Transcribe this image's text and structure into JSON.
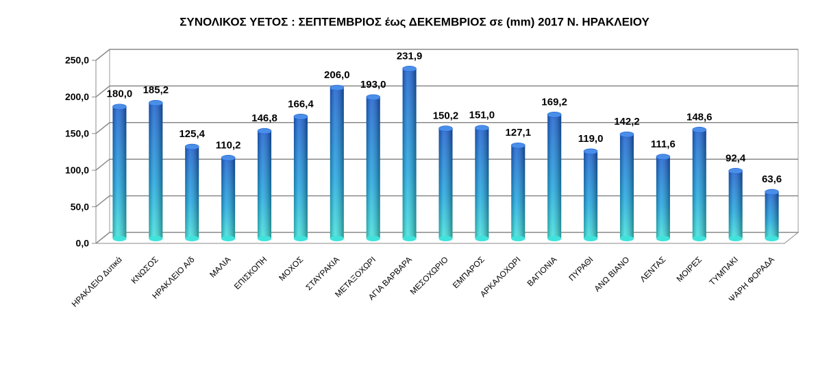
{
  "chart_data": {
    "type": "bar",
    "title": "ΣΥΝΟΛΙΚΟΣ ΥΕΤΟΣ : ΣΕΠΤΕΜΒΡΙΟΣ έως  ΔΕΚΕΜΒΡΙΟΣ σε  (mm) 2017 Ν. ΗΡΑΚΛΕΙΟΥ",
    "categories": [
      "ΗΡΑΚΛΕΙΟ Δυτικά",
      "ΚΝΩΣΟΣ",
      "ΗΡΑΚΛΕΙΟ Α/δ",
      "ΜΑΛΙΑ",
      "ΕΠΙΣΚΟΠΗ",
      "ΜΟΧΟΣ",
      "ΣΤΑΥΡΑΚΙΑ",
      "ΜΕΤΑΞΟΧΩΡΙ",
      "ΑΓΙΑ ΒΑΡΒΑΡΑ",
      "ΜΕΣΟΧΩΡΙΟ",
      "ΕΜΠΑΡΟΣ",
      "ΑΡΚΑΛΟΧΩΡΙ",
      "ΒΑΓΙΟΝΙΑ",
      "ΠΥΡΑΘΙ",
      "ΑΝΩ ΒΙΑΝΟ",
      "ΛΕΝΤΑΣ",
      "ΜΟΙΡΕΣ",
      "ΤΥΜΠΑΚΙ",
      "ΨΑΡΗ ΦΟΡΑΔΑ"
    ],
    "values": [
      180.0,
      185.2,
      125.4,
      110.2,
      146.8,
      166.4,
      206.0,
      193.0,
      231.9,
      150.2,
      151.0,
      127.1,
      169.2,
      119.0,
      142.2,
      111.6,
      148.6,
      92.4,
      63.6
    ],
    "value_labels": [
      "180,0",
      "185,2",
      "125,4",
      "110,2",
      "146,8",
      "166,4",
      "206,0",
      "193,0",
      "231,9",
      "150,2",
      "151,0",
      "127,1",
      "169,2",
      "119,0",
      "142,2",
      "111,6",
      "148,6",
      "92,4",
      "63,6"
    ],
    "color": "#1565d8",
    "ylim": [
      0,
      250
    ],
    "yticks": [
      {
        "value": 0,
        "label": "0,0"
      },
      {
        "value": 50,
        "label": "50,0"
      },
      {
        "value": 100,
        "label": "100,0"
      },
      {
        "value": 150,
        "label": "150,0"
      },
      {
        "value": 200,
        "label": "200,0"
      },
      {
        "value": 250,
        "label": "250,0"
      }
    ],
    "grid": true
  }
}
